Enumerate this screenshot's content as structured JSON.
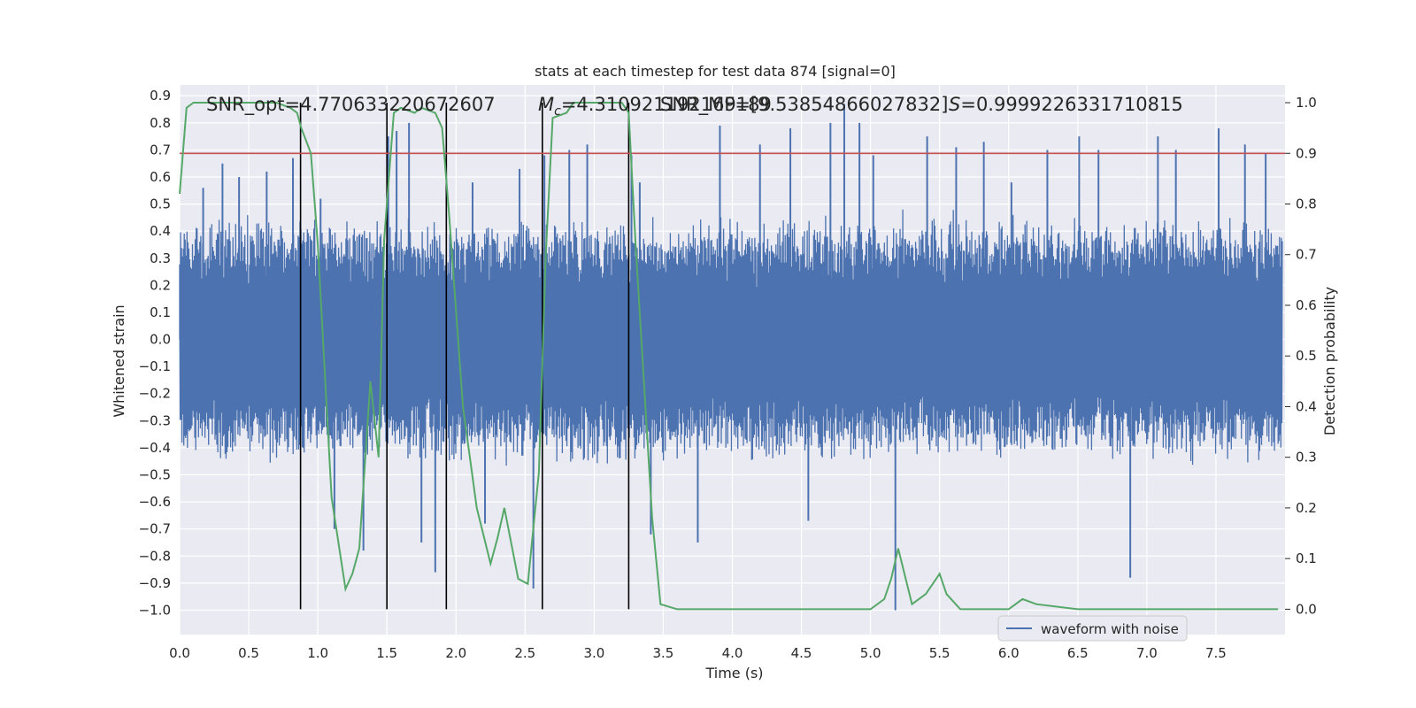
{
  "chart_data": {
    "type": "line",
    "title": "stats at each timestep for test data 874 [signal=0]",
    "xlabel": "Time (s)",
    "ylabel_left": "Whitened strain",
    "ylabel_right": "Detection probability",
    "xlim": [
      0.0,
      8.0
    ],
    "ylim_left": [
      -1.09,
      0.94
    ],
    "ylim_right": [
      -0.05,
      1.035
    ],
    "x_ticks": [
      "0.0",
      "0.5",
      "1.0",
      "1.5",
      "2.0",
      "2.5",
      "3.0",
      "3.5",
      "4.0",
      "4.5",
      "5.0",
      "5.5",
      "6.0",
      "6.5",
      "7.0",
      "7.5"
    ],
    "y_left_ticks": [
      "0.9",
      "0.8",
      "0.7",
      "0.6",
      "0.5",
      "0.4",
      "0.3",
      "0.2",
      "0.1",
      "0.0",
      "−0.1",
      "−0.2",
      "−0.3",
      "−0.4",
      "−0.5",
      "−0.6",
      "−0.7",
      "−0.8",
      "−0.9",
      "−1.0"
    ],
    "y_right_ticks": [
      "1.0",
      "0.9",
      "0.8",
      "0.7",
      "0.6",
      "0.5",
      "0.4",
      "0.3",
      "0.2",
      "0.1",
      "0.0"
    ],
    "grid": true,
    "legend": {
      "placement": "lower-right",
      "entries": [
        "waveform with noise"
      ]
    },
    "annotations": {
      "snr_opt": "SNR_opt=4.770633220672607",
      "mc_symbol": "M",
      "mc_sub": "c",
      "mc_value": "=4.310921192169189",
      "snr_mf": "SNR_MF=[9.53854866027832]",
      "s_symbol": "S",
      "s_value": "=0.9999226331710815"
    },
    "threshold": {
      "value": 0.9,
      "axis": "right",
      "color": "#c44e52"
    },
    "vlines_x": [
      0.875,
      1.5,
      1.93,
      2.625,
      3.25
    ],
    "waveform": {
      "name": "waveform with noise",
      "axis": "left",
      "color": "#4c72b0",
      "x_start": 0.0,
      "x_end": 7.98,
      "core_amplitude": 0.29,
      "peak_x": [
        0.17,
        0.31,
        0.43,
        0.63,
        0.82,
        1.02,
        1.12,
        1.33,
        1.51,
        1.57,
        1.66,
        1.75,
        1.85,
        2.12,
        2.21,
        2.46,
        2.56,
        2.64,
        2.82,
        2.95,
        3.27,
        3.33,
        3.41,
        3.75,
        3.91,
        4.2,
        4.42,
        4.55,
        4.71,
        4.81,
        4.92,
        5.02,
        5.18,
        5.41,
        5.62,
        5.82,
        6.02,
        6.28,
        6.51,
        6.65,
        6.88,
        7.08,
        7.21,
        7.52,
        7.71,
        7.86
      ],
      "peak_y": [
        0.56,
        0.65,
        0.6,
        0.62,
        0.67,
        0.52,
        -0.7,
        -0.78,
        0.75,
        0.77,
        0.8,
        -0.75,
        -0.86,
        0.58,
        -0.68,
        0.63,
        -0.92,
        0.68,
        0.7,
        0.72,
        0.68,
        0.58,
        -0.72,
        -0.75,
        0.79,
        0.72,
        0.78,
        -0.67,
        0.8,
        0.87,
        0.8,
        0.68,
        -1.0,
        0.75,
        0.71,
        0.73,
        0.58,
        0.7,
        0.75,
        0.7,
        -0.88,
        0.75,
        0.7,
        0.78,
        0.72,
        0.69
      ]
    },
    "series": [
      {
        "name": "",
        "axis": "right",
        "color": "#55a868",
        "x": [
          0.0,
          0.05,
          0.1,
          0.2,
          0.5,
          0.7,
          0.8,
          0.85,
          0.88,
          0.95,
          1.0,
          1.1,
          1.2,
          1.25,
          1.3,
          1.38,
          1.44,
          1.48,
          1.55,
          1.6,
          1.7,
          1.75,
          1.85,
          1.9,
          1.95,
          2.05,
          2.15,
          2.25,
          2.3,
          2.35,
          2.45,
          2.52,
          2.6,
          2.65,
          2.7,
          2.8,
          2.85,
          2.95,
          3.1,
          3.2,
          3.25,
          3.3,
          3.42,
          3.48,
          3.6,
          4.0,
          4.2,
          4.5,
          4.7,
          5.0,
          5.1,
          5.15,
          5.2,
          5.3,
          5.4,
          5.45,
          5.5,
          5.55,
          5.65,
          5.8,
          6.0,
          6.1,
          6.2,
          6.5,
          6.75,
          7.0,
          7.5,
          7.95
        ],
        "values": [
          0.82,
          0.99,
          1.0,
          1.0,
          1.0,
          1.0,
          0.99,
          0.98,
          0.95,
          0.9,
          0.72,
          0.22,
          0.04,
          0.07,
          0.12,
          0.45,
          0.3,
          0.73,
          0.98,
          0.99,
          0.98,
          0.99,
          0.98,
          0.95,
          0.78,
          0.4,
          0.2,
          0.09,
          0.14,
          0.2,
          0.06,
          0.05,
          0.27,
          0.7,
          0.97,
          0.98,
          1.0,
          1.0,
          1.0,
          1.0,
          0.98,
          0.72,
          0.18,
          0.01,
          0.0,
          0.0,
          0.0,
          0.0,
          0.0,
          0.0,
          0.02,
          0.06,
          0.12,
          0.01,
          0.03,
          0.05,
          0.07,
          0.03,
          0.0,
          0.0,
          0.0,
          0.02,
          0.01,
          0.0,
          0.0,
          0.0,
          0.0,
          0.0
        ]
      }
    ]
  }
}
